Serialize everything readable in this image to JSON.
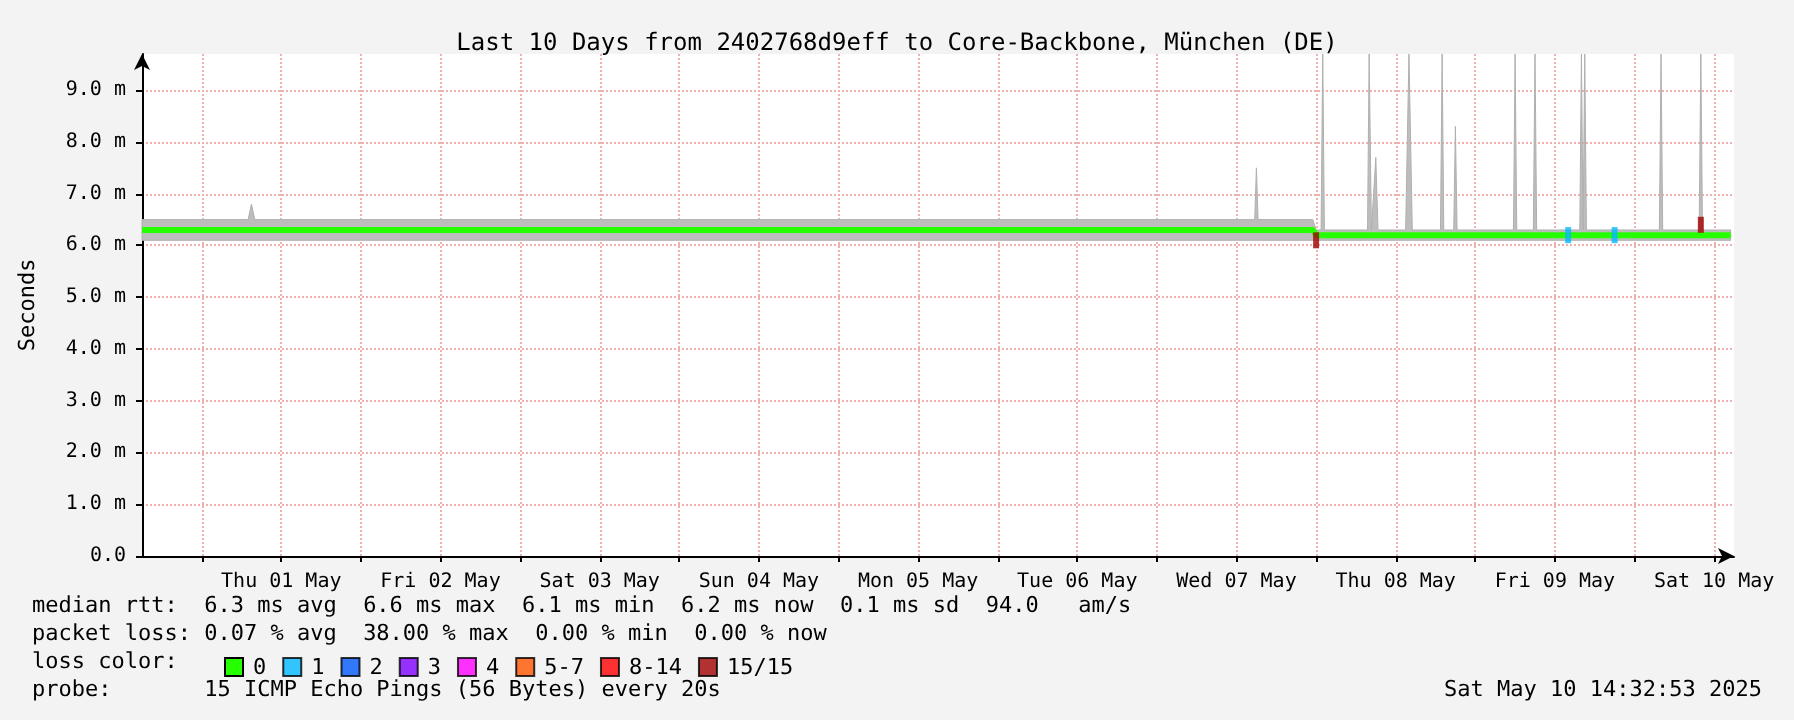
{
  "chart_data": {
    "type": "line",
    "title": "Last 10 Days from 2402768d9eff to Core-Backbone, München (DE)",
    "ylabel": "Seconds",
    "legend_title": "loss color:",
    "legend": "bottom left",
    "xlim": [
      "2025-04-30T15:00",
      "2025-05-10T15:00"
    ],
    "xticks": [
      {
        "value": "2025-05-01T00:00",
        "label": null
      },
      {
        "value": "2025-05-01T12:00",
        "label": "Thu 01 May"
      },
      {
        "value": "2025-05-02T00:00",
        "label": null
      },
      {
        "value": "2025-05-02T12:00",
        "label": "Fri 02 May"
      },
      {
        "value": "2025-05-03T00:00",
        "label": null
      },
      {
        "value": "2025-05-03T12:00",
        "label": "Sat 03 May"
      },
      {
        "value": "2025-05-04T00:00",
        "label": null
      },
      {
        "value": "2025-05-04T12:00",
        "label": "Sun 04 May"
      },
      {
        "value": "2025-05-05T00:00",
        "label": null
      },
      {
        "value": "2025-05-05T12:00",
        "label": "Mon 05 May"
      },
      {
        "value": "2025-05-06T00:00",
        "label": null
      },
      {
        "value": "2025-05-06T12:00",
        "label": "Tue 06 May"
      },
      {
        "value": "2025-05-07T00:00",
        "label": null
      },
      {
        "value": "2025-05-07T12:00",
        "label": "Wed 07 May"
      },
      {
        "value": "2025-05-08T00:00",
        "label": null
      },
      {
        "value": "2025-05-08T12:00",
        "label": "Thu 08 May"
      },
      {
        "value": "2025-05-09T00:00",
        "label": null
      },
      {
        "value": "2025-05-09T12:00",
        "label": "Fri 09 May"
      },
      {
        "value": "2025-05-10T00:00",
        "label": null
      },
      {
        "value": "2025-05-10T12:00",
        "label": "Sat 10 May"
      }
    ],
    "ylim": [
      0,
      9.7
    ],
    "yticks": [
      {
        "value": 0,
        "label": "0.0"
      },
      {
        "value": 1,
        "label": "1.0 m"
      },
      {
        "value": 2,
        "label": "2.0 m"
      },
      {
        "value": 3,
        "label": "3.0 m"
      },
      {
        "value": 4,
        "label": "4.0 m"
      },
      {
        "value": 5,
        "label": "5.0 m"
      },
      {
        "value": 6,
        "label": "6.0 m"
      },
      {
        "value": 7,
        "label": "7.0 m"
      },
      {
        "value": 8,
        "label": "8.0 m"
      },
      {
        "value": 9,
        "label": "9.0 m"
      }
    ],
    "grid": true,
    "marker": "none",
    "line_style": "solid",
    "series": [
      {
        "name": "0",
        "color": "#26ff00",
        "x": [
          "2025-04-30T15:00",
          "2025-05-01T00:00",
          "2025-05-01T07:00",
          "2025-05-01T07:30",
          "2025-05-01T08:00",
          "2025-05-01T12:00",
          "2025-05-02T00:00",
          "2025-05-02T12:00",
          "2025-05-03T00:00",
          "2025-05-03T12:00",
          "2025-05-04T00:00",
          "2025-05-04T12:00",
          "2025-05-05T00:00",
          "2025-05-05T12:00",
          "2025-05-06T00:00",
          "2025-05-06T12:00",
          "2025-05-07T00:00",
          "2025-05-07T12:00",
          "2025-05-07T14:45",
          "2025-05-07T15:00",
          "2025-05-07T15:15",
          "2025-05-07T23:30",
          "2025-05-08T00:00",
          "2025-05-08T00:45",
          "2025-05-08T01:00",
          "2025-05-08T01:15",
          "2025-05-08T07:45",
          "2025-05-08T08:00",
          "2025-05-08T08:20",
          "2025-05-08T09:00",
          "2025-05-08T09:20",
          "2025-05-08T13:30",
          "2025-05-08T14:00",
          "2025-05-08T14:30",
          "2025-05-08T18:45",
          "2025-05-08T19:00",
          "2025-05-08T19:15",
          "2025-05-08T20:45",
          "2025-05-08T21:00",
          "2025-05-08T21:15",
          "2025-05-09T00:00",
          "2025-05-09T05:45",
          "2025-05-09T06:00",
          "2025-05-09T06:15",
          "2025-05-09T08:45",
          "2025-05-09T09:00",
          "2025-05-09T09:15",
          "2025-05-09T15:45",
          "2025-05-09T16:00",
          "2025-05-09T16:15",
          "2025-05-09T16:30",
          "2025-05-09T16:45",
          "2025-05-10T00:00",
          "2025-05-10T03:45",
          "2025-05-10T04:00",
          "2025-05-10T04:15",
          "2025-05-10T09:45",
          "2025-05-10T10:00",
          "2025-05-10T10:15",
          "2025-05-10T14:30"
        ],
        "values": [
          6.3,
          6.3,
          6.3,
          6.3,
          6.3,
          6.3,
          6.3,
          6.3,
          6.3,
          6.3,
          6.3,
          6.3,
          6.3,
          6.3,
          6.3,
          6.3,
          6.3,
          6.3,
          6.3,
          6.3,
          6.3,
          6.3,
          6.2,
          6.2,
          6.2,
          6.2,
          6.2,
          6.2,
          6.2,
          6.2,
          6.2,
          6.2,
          6.2,
          6.2,
          6.2,
          6.2,
          6.2,
          6.2,
          6.2,
          6.2,
          6.2,
          6.2,
          6.2,
          6.2,
          6.2,
          6.2,
          6.2,
          6.2,
          6.2,
          6.2,
          6.2,
          6.2,
          6.2,
          6.2,
          6.2,
          6.2,
          6.2,
          6.2,
          6.2,
          6.2
        ],
        "lower": [
          6.1,
          6.1,
          6.1,
          6.1,
          6.1,
          6.1,
          6.1,
          6.1,
          6.1,
          6.1,
          6.1,
          6.1,
          6.1,
          6.1,
          6.1,
          6.1,
          6.1,
          6.1,
          6.1,
          6.1,
          6.1,
          6.1,
          6.1,
          6.1,
          6.1,
          6.1,
          6.1,
          6.1,
          6.1,
          6.1,
          6.1,
          6.1,
          6.1,
          6.1,
          6.1,
          6.1,
          6.1,
          6.1,
          6.1,
          6.1,
          6.1,
          6.1,
          6.1,
          6.1,
          6.1,
          6.1,
          6.1,
          6.1,
          6.1,
          6.1,
          6.1,
          6.1,
          6.1,
          6.1,
          6.1,
          6.1,
          6.1,
          6.1,
          6.1,
          6.1
        ],
        "upper": [
          6.5,
          6.5,
          6.5,
          6.8,
          6.5,
          6.5,
          6.5,
          6.5,
          6.5,
          6.5,
          6.5,
          6.5,
          6.5,
          6.5,
          6.5,
          6.5,
          6.5,
          6.5,
          6.5,
          7.5,
          6.5,
          6.5,
          6.3,
          6.3,
          9.7,
          6.3,
          6.3,
          9.7,
          6.3,
          7.7,
          6.3,
          6.3,
          9.7,
          6.3,
          6.3,
          9.7,
          6.3,
          6.3,
          8.3,
          6.3,
          6.3,
          6.3,
          9.7,
          6.3,
          6.3,
          9.7,
          6.3,
          6.3,
          9.7,
          6.3,
          9.7,
          6.3,
          6.3,
          6.3,
          9.7,
          6.3,
          6.3,
          9.7,
          6.3,
          6.3
        ]
      },
      {
        "name": "1",
        "color": "#00b8ff",
        "type": "scatter",
        "marker": "square",
        "x": [
          "2025-05-09T14:00",
          "2025-05-09T21:00"
        ],
        "values": [
          6.2,
          6.2
        ]
      },
      {
        "name": "2",
        "color": "#0059ff",
        "type": "scatter"
      },
      {
        "name": "3",
        "color": "#7e00ff",
        "type": "scatter"
      },
      {
        "name": "4",
        "color": "#ff00ff",
        "type": "scatter"
      },
      {
        "name": "5-7",
        "color": "#ff5500",
        "type": "scatter"
      },
      {
        "name": "8-14",
        "color": "#ff0000",
        "type": "scatter"
      },
      {
        "name": "15/15",
        "color": "#a10000",
        "type": "scatter",
        "marker": "square",
        "x": [
          "2025-05-08T00:00",
          "2025-05-10T10:00"
        ],
        "values": [
          6.1,
          6.4
        ]
      }
    ],
    "annotations": [
      "median rtt:  6.3 ms avg  6.6 ms max  6.1 ms min  6.2 ms now  0.1 ms sd  94.0   am/s",
      "packet loss: 0.07 % avg  38.00 % max  0.00 % min  0.00 % now",
      "probe:       15 ICMP Echo Pings (56 Bytes) every 20s",
      "Sat May 10 14:32:53 2025"
    ]
  }
}
